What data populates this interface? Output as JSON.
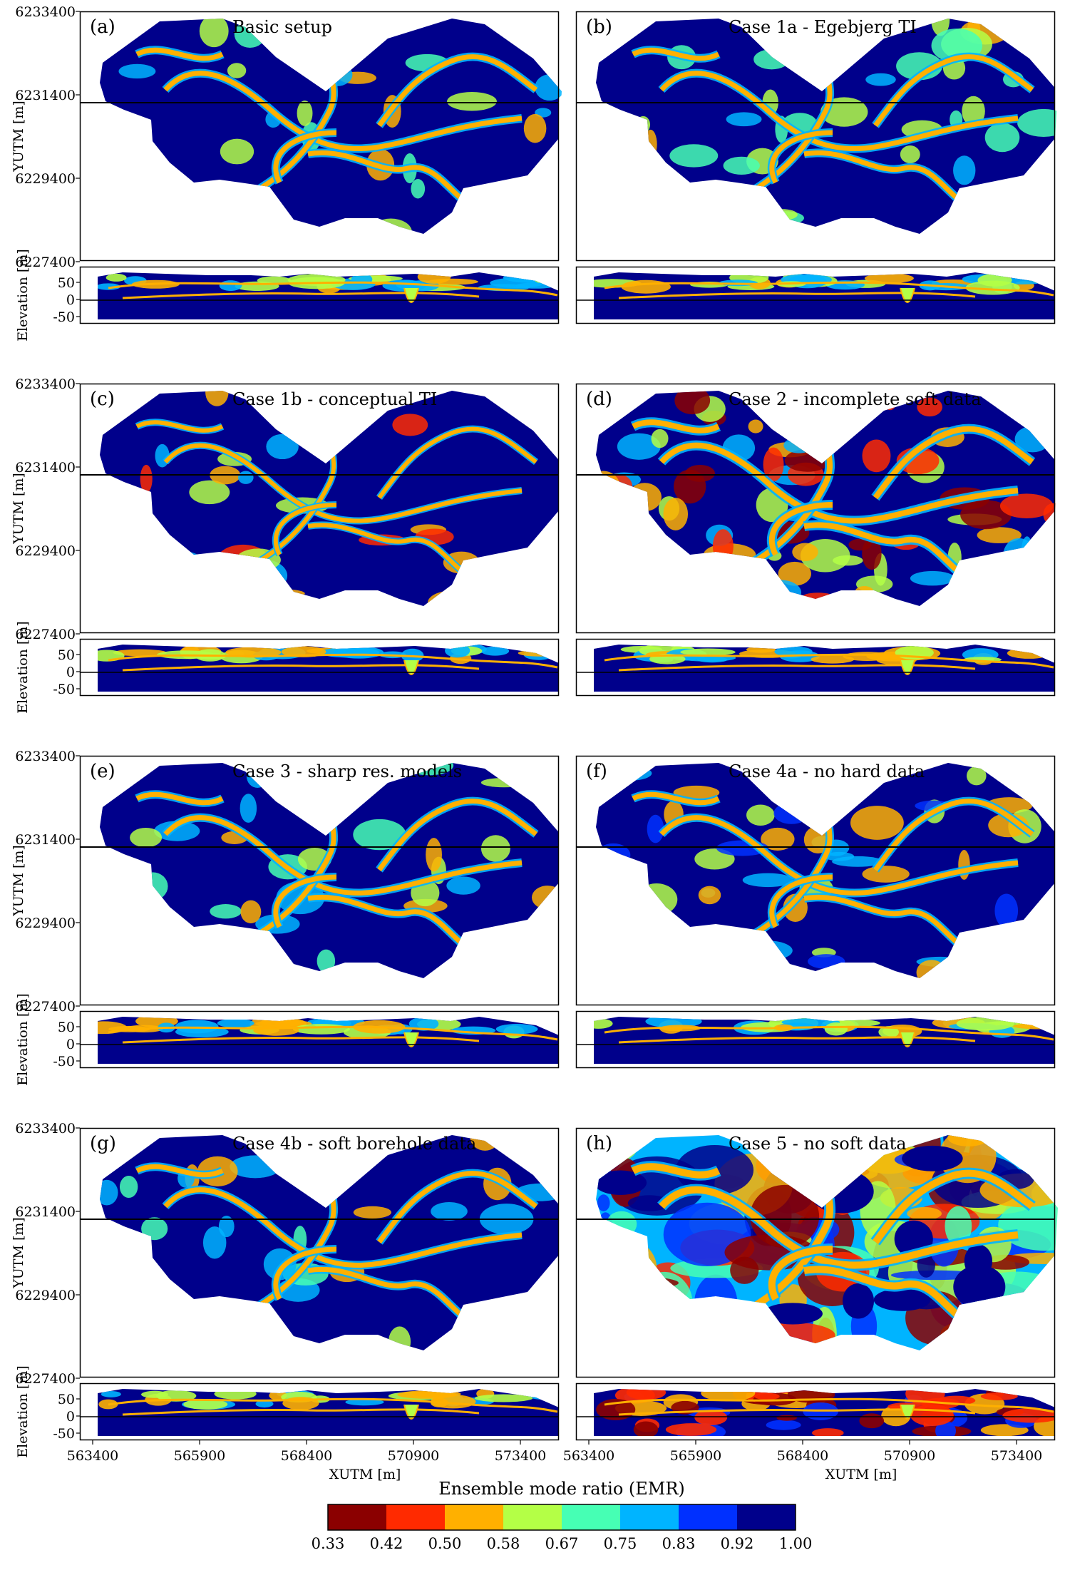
{
  "chart_data": {
    "type": "heatmap",
    "layout": "4 rows x 2 columns of map + cross-section panel pairs",
    "panels": [
      {
        "id": "(a)",
        "title": "Basic setup",
        "style": "basic"
      },
      {
        "id": "(b)",
        "title": "Case 1a - Egebjerg TI",
        "style": "basic"
      },
      {
        "id": "(c)",
        "title": "Case 1b - conceptual TI",
        "style": "conceptual"
      },
      {
        "id": "(d)",
        "title": "Case 2 - incomplete soft data",
        "style": "incomplete"
      },
      {
        "id": "(e)",
        "title": "Case 3 - sharp res. models",
        "style": "basic"
      },
      {
        "id": "(f)",
        "title": "Case 4a - no hard data",
        "style": "nohard"
      },
      {
        "id": "(g)",
        "title": "Case 4b - soft borehole data",
        "style": "basic"
      },
      {
        "id": "(h)",
        "title": "Case 5 - no soft data",
        "style": "nosoft"
      }
    ],
    "map_y_label": "YUTM [m]",
    "map_y_ticks": [
      "6233400",
      "6231400",
      "6229400",
      "6227400"
    ],
    "section_y_label": "Elevation [m]",
    "section_y_ticks": [
      "50",
      "0",
      "-50"
    ],
    "x_label": "XUTM [m]",
    "x_ticks": [
      "563400",
      "565900",
      "568400",
      "570900",
      "573400"
    ],
    "colorbar": {
      "title": "Ensemble mode ratio (EMR)",
      "ticks": [
        "0.33",
        "0.42",
        "0.50",
        "0.58",
        "0.67",
        "0.75",
        "0.83",
        "0.92",
        "1.00"
      ],
      "colors": [
        "#8b0000",
        "#ff2a00",
        "#ffb000",
        "#b4ff46",
        "#46ffb4",
        "#00b4ff",
        "#0030ff",
        "#00008b"
      ]
    },
    "background_color": "#00008b"
  }
}
